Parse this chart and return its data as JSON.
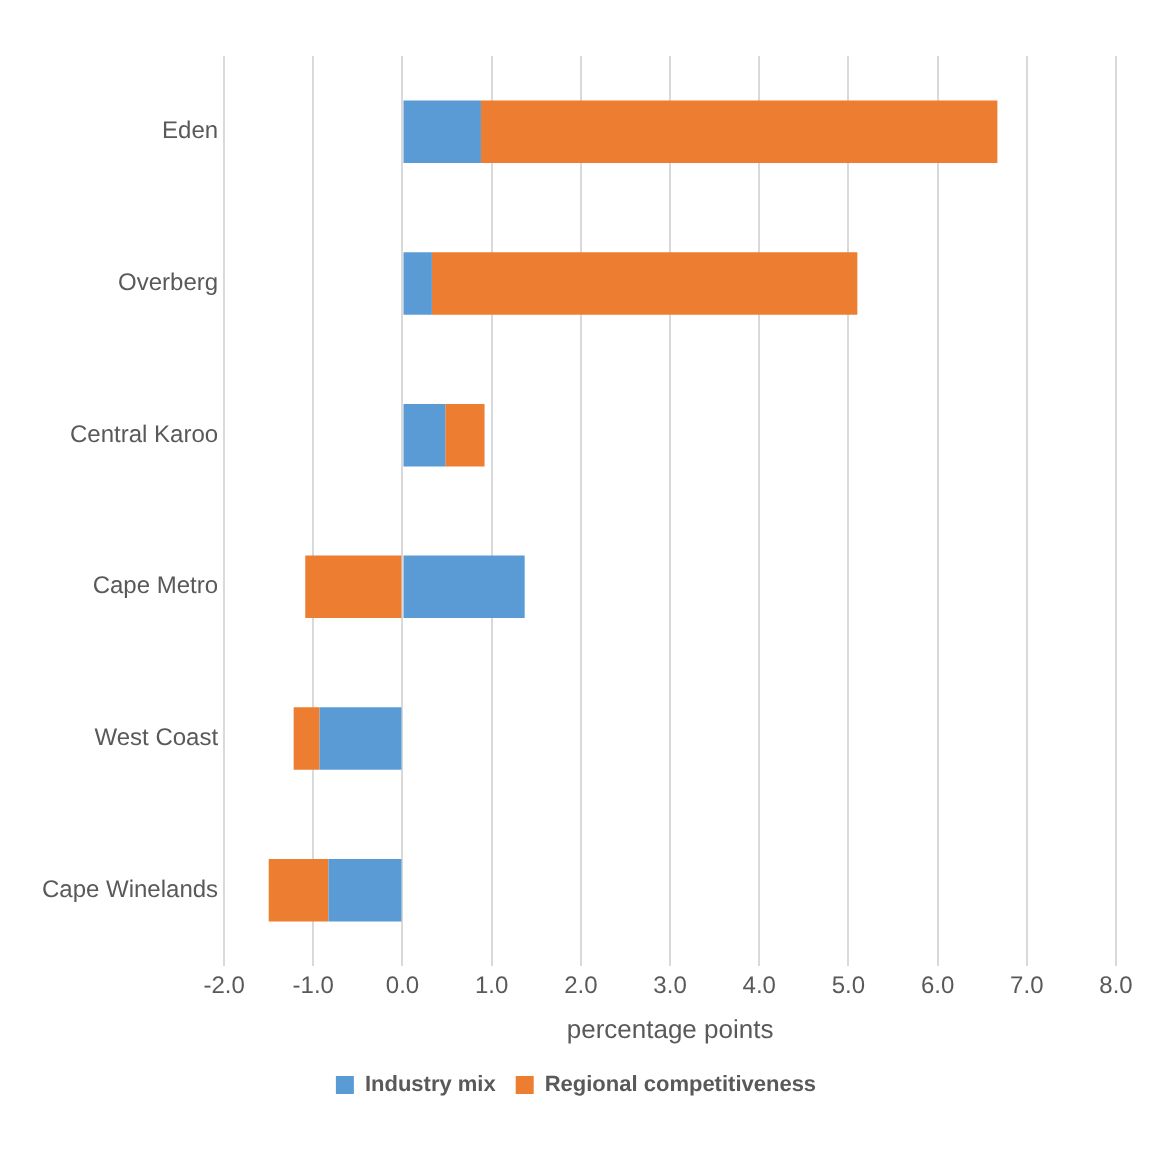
{
  "chart_data": {
    "type": "bar",
    "orientation": "horizontal",
    "stacked": true,
    "xlabel": "percentage points",
    "categories": [
      "Eden",
      "Overberg",
      "Central Karoo",
      "Cape Metro",
      "West Coast",
      "Cape Winelands"
    ],
    "series": [
      {
        "name": "Industry mix",
        "color": "#5b9bd5",
        "values": [
          0.88,
          0.33,
          0.48,
          1.37,
          -0.93,
          -0.83
        ]
      },
      {
        "name": "Regional competitiveness",
        "color": "#ed7d31",
        "values": [
          5.79,
          4.77,
          0.44,
          -1.09,
          -0.29,
          -0.67
        ]
      }
    ],
    "xlim": [
      -2,
      8
    ],
    "xticks": [
      {
        "value": -2,
        "label": "-2.0"
      },
      {
        "value": -1,
        "label": "-1.0"
      },
      {
        "value": 0,
        "label": "0.0"
      },
      {
        "value": 1,
        "label": "1.0"
      },
      {
        "value": 2,
        "label": "2.0"
      },
      {
        "value": 3,
        "label": "3.0"
      },
      {
        "value": 4,
        "label": "4.0"
      },
      {
        "value": 5,
        "label": "5.0"
      },
      {
        "value": 6,
        "label": "6.0"
      },
      {
        "value": 7,
        "label": "7.0"
      },
      {
        "value": 8,
        "label": "8.0"
      }
    ],
    "grid": "x",
    "legend": "bottom"
  }
}
